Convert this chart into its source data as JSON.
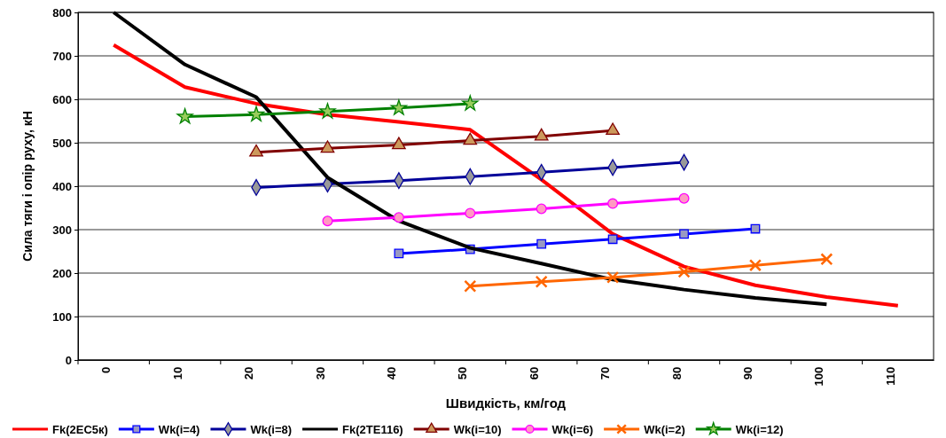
{
  "chart_data": {
    "type": "line",
    "xlabel": "Швидкість, км/год",
    "ylabel": "Сила тяги  і опір руху, кН",
    "categories": [
      "0",
      "10",
      "20",
      "30",
      "40",
      "50",
      "60",
      "70",
      "80",
      "90",
      "100",
      "110"
    ],
    "ylim": [
      0,
      800
    ],
    "yticks": [
      0,
      100,
      200,
      300,
      400,
      500,
      600,
      700,
      800
    ],
    "grid": "y",
    "legend": "bottom",
    "series": [
      {
        "name": "Fk(2ЕС5к)",
        "color": "#ff0000",
        "marker": "none",
        "values": [
          725,
          628,
          590,
          565,
          548,
          530,
          415,
          290,
          215,
          172,
          145,
          125
        ]
      },
      {
        "name": "Wk(i=4)",
        "color": "#0000ff",
        "marker": "square",
        "values": [
          null,
          null,
          null,
          null,
          245,
          255,
          267,
          278,
          290,
          302,
          null,
          null
        ]
      },
      {
        "name": "Wk(i=8)",
        "color": "#000099",
        "marker": "diamond",
        "values": [
          null,
          null,
          397,
          405,
          413,
          422,
          432,
          443,
          455,
          null,
          null,
          null
        ]
      },
      {
        "name": "Fk(2ТЕ116)",
        "color": "#000000",
        "marker": "none",
        "values": [
          800,
          680,
          605,
          420,
          320,
          258,
          222,
          185,
          162,
          143,
          128,
          null
        ]
      },
      {
        "name": "Wk(i=10)",
        "color": "#800000",
        "marker": "triangle",
        "values": [
          null,
          null,
          478,
          487,
          495,
          505,
          515,
          528,
          null,
          null,
          null,
          null
        ]
      },
      {
        "name": "Wk(i=6)",
        "color": "#ff00ff",
        "marker": "circle",
        "values": [
          null,
          null,
          null,
          320,
          328,
          338,
          348,
          360,
          372,
          null,
          null,
          null
        ]
      },
      {
        "name": "Wk(i=2)",
        "color": "#ff6600",
        "marker": "cross",
        "values": [
          null,
          null,
          null,
          null,
          null,
          170,
          180,
          190,
          203,
          218,
          232,
          null
        ]
      },
      {
        "name": "Wk(i=12)",
        "color": "#008000",
        "marker": "star",
        "values": [
          null,
          560,
          565,
          572,
          580,
          590,
          null,
          null,
          null,
          null,
          null,
          null
        ]
      }
    ]
  }
}
